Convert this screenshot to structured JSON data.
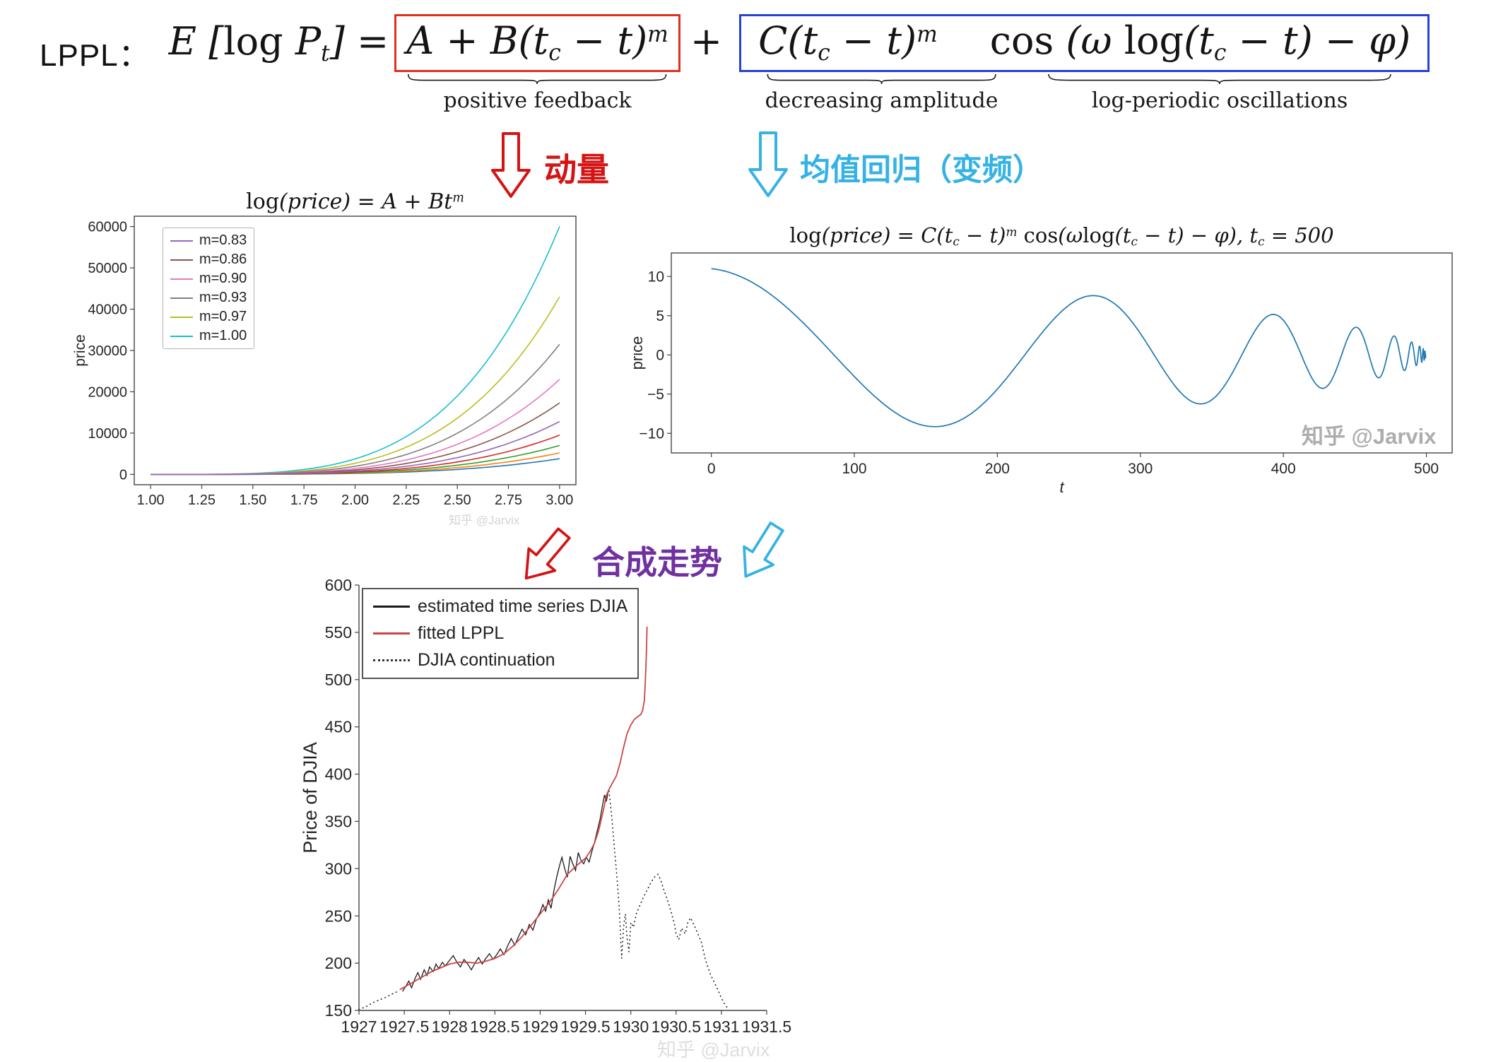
{
  "header": {
    "lppl_label": "LPPL：",
    "formula": {
      "lhs": "E [log P_t] =",
      "term1": "A + B(t_c − t)^m",
      "plus": "+",
      "term2a": "C(t_c − t)^m",
      "term2b": "cos (ω log(t_c − t) − φ)",
      "term1_label": "positive feedback",
      "term2a_label": "decreasing amplitude",
      "term2b_label": "log-periodic oscillations",
      "term1_box_color": "#e0301e",
      "term2_box_color": "#2742d6"
    }
  },
  "annotations": {
    "momentum": {
      "text": "动量",
      "color": "#d41414"
    },
    "mean_reversion": {
      "text": "均值回归（变频）",
      "color": "#35b2e5"
    },
    "synthesis": {
      "text": "合成走势",
      "color": "#7030a0"
    }
  },
  "watermark": {
    "text": "知乎 @Jarvix"
  },
  "chart_data": [
    {
      "type": "line",
      "title": "log(price) = A + Bt^m",
      "xlabel": "",
      "ylabel": "price",
      "xlim": [
        0.92,
        3.08
      ],
      "ylim": [
        -2500,
        62500
      ],
      "x_ticks": [
        1.0,
        1.25,
        1.5,
        1.75,
        2.0,
        2.25,
        2.5,
        2.75,
        3.0
      ],
      "x_tick_labels": [
        "1.00",
        "1.25",
        "1.50",
        "1.75",
        "2.00",
        "2.25",
        "2.50",
        "2.75",
        "3.00"
      ],
      "y_ticks": [
        0,
        10000,
        20000,
        30000,
        40000,
        50000,
        60000
      ],
      "y_tick_labels": [
        "0",
        "10000",
        "20000",
        "30000",
        "40000",
        "50000",
        "60000"
      ],
      "curve_shape": "price(t) = end_value * ((t - 1)/2)^4, t in [1,3]",
      "legend_position": "top-left",
      "series": [
        {
          "label": "m=0.83",
          "color": "#9467bd",
          "end_value": 12800
        },
        {
          "label": "m=0.86",
          "color": "#8c564b",
          "end_value": 17300
        },
        {
          "label": "m=0.90",
          "color": "#e377c2",
          "end_value": 23000
        },
        {
          "label": "m=0.93",
          "color": "#7f7f7f",
          "end_value": 31500
        },
        {
          "label": "m=0.97",
          "color": "#bcbd22",
          "end_value": 43000
        },
        {
          "label": "m=1.00",
          "color": "#17becf",
          "end_value": 60000
        },
        {
          "label": null,
          "color": "#d62728",
          "end_value": 9500
        },
        {
          "label": null,
          "color": "#2ca02c",
          "end_value": 7000
        },
        {
          "label": null,
          "color": "#ff7f0e",
          "end_value": 5200
        },
        {
          "label": null,
          "color": "#1f77b4",
          "end_value": 3800
        }
      ]
    },
    {
      "type": "line",
      "title": "log(price) = C(t_c − t)^m cos(ωlog(t_c − t) − φ), t_c = 500",
      "xlabel": "t",
      "ylabel": "price",
      "xlim": [
        -28,
        518
      ],
      "ylim": [
        -12.5,
        13
      ],
      "x_ticks": [
        0,
        100,
        200,
        300,
        400,
        500
      ],
      "x_tick_labels": [
        "0",
        "100",
        "200",
        "300",
        "400",
        "500"
      ],
      "y_ticks": [
        -10,
        -5,
        0,
        5,
        10
      ],
      "y_tick_labels": [
        "−10",
        "−5",
        "0",
        "5",
        "10"
      ],
      "color": "#1f77b4",
      "formula": "price(t) = C*(t_c − t)^m * cos(omega*ln(t_c − t) − phi)",
      "params": {
        "C": 0.524,
        "m": 0.49,
        "omega": 8.08,
        "phi": 0,
        "t_c": 500
      },
      "x_range": [
        0,
        499.5
      ]
    },
    {
      "type": "line",
      "title": "",
      "xlabel": "",
      "ylabel": "Price of DJIA",
      "xlim": [
        1927,
        1931.5
      ],
      "ylim": [
        150,
        600
      ],
      "x_ticks": [
        1927,
        1927.5,
        1928,
        1928.5,
        1929,
        1929.5,
        1930,
        1930.5,
        1931,
        1931.5
      ],
      "x_tick_labels": [
        "1927",
        "1927.5",
        "1928",
        "1928.5",
        "1929",
        "1929.5",
        "1930",
        "1930.5",
        "1931",
        "1931.5"
      ],
      "y_ticks": [
        150,
        200,
        250,
        300,
        350,
        400,
        450,
        500,
        550,
        600
      ],
      "y_tick_labels": [
        "150",
        "200",
        "250",
        "300",
        "350",
        "400",
        "450",
        "500",
        "550",
        "600"
      ],
      "legend": {
        "position": "top-left",
        "entries": [
          {
            "label": "estimated time series DJIA",
            "color": "#1a1a1a",
            "style": "solid"
          },
          {
            "label": "fitted LPPL",
            "color": "#cc4444",
            "style": "solid"
          },
          {
            "label": "DJIA continuation",
            "color": "#333333",
            "style": "dotted"
          }
        ]
      },
      "series": [
        {
          "name": "estimated time series DJIA",
          "color": "#1a1a1a",
          "style": "solid",
          "points": [
            [
              1927.48,
              170
            ],
            [
              1927.52,
              176
            ],
            [
              1927.55,
              181
            ],
            [
              1927.58,
              174
            ],
            [
              1927.62,
              184
            ],
            [
              1927.65,
              190
            ],
            [
              1927.68,
              183
            ],
            [
              1927.72,
              193
            ],
            [
              1927.75,
              187
            ],
            [
              1927.78,
              196
            ],
            [
              1927.82,
              191
            ],
            [
              1927.85,
              199
            ],
            [
              1927.88,
              194
            ],
            [
              1927.92,
              201
            ],
            [
              1927.95,
              197
            ],
            [
              1928.0,
              203
            ],
            [
              1928.04,
              208
            ],
            [
              1928.08,
              201
            ],
            [
              1928.12,
              196
            ],
            [
              1928.16,
              204
            ],
            [
              1928.2,
              199
            ],
            [
              1928.24,
              193
            ],
            [
              1928.28,
              200
            ],
            [
              1928.32,
              206
            ],
            [
              1928.36,
              199
            ],
            [
              1928.4,
              205
            ],
            [
              1928.44,
              210
            ],
            [
              1928.48,
              204
            ],
            [
              1928.52,
              209
            ],
            [
              1928.56,
              215
            ],
            [
              1928.6,
              209
            ],
            [
              1928.64,
              218
            ],
            [
              1928.68,
              226
            ],
            [
              1928.72,
              219
            ],
            [
              1928.76,
              228
            ],
            [
              1928.8,
              236
            ],
            [
              1928.84,
              230
            ],
            [
              1928.88,
              241
            ],
            [
              1928.92,
              235
            ],
            [
              1928.96,
              247
            ],
            [
              1929.0,
              254
            ],
            [
              1929.03,
              262
            ],
            [
              1929.06,
              255
            ],
            [
              1929.09,
              267
            ],
            [
              1929.12,
              258
            ],
            [
              1929.15,
              276
            ],
            [
              1929.18,
              290
            ],
            [
              1929.21,
              302
            ],
            [
              1929.24,
              312
            ],
            [
              1929.27,
              300
            ],
            [
              1929.3,
              291
            ],
            [
              1929.33,
              313
            ],
            [
              1929.36,
              305
            ],
            [
              1929.39,
              298
            ],
            [
              1929.42,
              317
            ],
            [
              1929.45,
              309
            ],
            [
              1929.48,
              305
            ],
            [
              1929.51,
              312
            ],
            [
              1929.54,
              307
            ],
            [
              1929.57,
              318
            ],
            [
              1929.6,
              328
            ],
            [
              1929.63,
              340
            ],
            [
              1929.66,
              352
            ],
            [
              1929.69,
              368
            ],
            [
              1929.71,
              378
            ],
            [
              1929.73,
              371
            ],
            [
              1929.75,
              381
            ]
          ]
        },
        {
          "name": "fitted LPPL",
          "color": "#cc4444",
          "style": "solid",
          "points": [
            [
              1927.45,
              172
            ],
            [
              1927.6,
              180
            ],
            [
              1927.8,
              191
            ],
            [
              1928.0,
              199
            ],
            [
              1928.1,
              201
            ],
            [
              1928.2,
              201
            ],
            [
              1928.3,
              200
            ],
            [
              1928.4,
              202
            ],
            [
              1928.5,
              205
            ],
            [
              1928.6,
              210
            ],
            [
              1928.7,
              218
            ],
            [
              1928.8,
              228
            ],
            [
              1928.9,
              240
            ],
            [
              1929.0,
              252
            ],
            [
              1929.1,
              264
            ],
            [
              1929.2,
              278
            ],
            [
              1929.3,
              294
            ],
            [
              1929.4,
              303
            ],
            [
              1929.5,
              311
            ],
            [
              1929.55,
              318
            ],
            [
              1929.6,
              327
            ],
            [
              1929.65,
              342
            ],
            [
              1929.7,
              363
            ],
            [
              1929.73,
              377
            ],
            [
              1929.76,
              384
            ],
            [
              1929.8,
              391
            ],
            [
              1929.84,
              398
            ],
            [
              1929.88,
              411
            ],
            [
              1929.92,
              428
            ],
            [
              1929.96,
              443
            ],
            [
              1930.0,
              452
            ],
            [
              1930.04,
              458
            ],
            [
              1930.08,
              461
            ],
            [
              1930.11,
              463
            ],
            [
              1930.13,
              467
            ],
            [
              1930.15,
              478
            ],
            [
              1930.16,
              497
            ],
            [
              1930.17,
              522
            ],
            [
              1930.18,
              556
            ]
          ]
        },
        {
          "name": "DJIA continuation",
          "color": "#333333",
          "style": "dotted",
          "segments": [
            [
              [
                1927.0,
                151
              ],
              [
                1927.08,
                154
              ],
              [
                1927.15,
                158
              ],
              [
                1927.22,
                161
              ],
              [
                1927.3,
                164
              ],
              [
                1927.38,
                168
              ],
              [
                1927.45,
                171
              ]
            ],
            [
              [
                1929.76,
                382
              ],
              [
                1929.79,
                355
              ],
              [
                1929.81,
                332
              ],
              [
                1929.83,
                310
              ],
              [
                1929.85,
                288
              ],
              [
                1929.87,
                262
              ],
              [
                1929.88,
                243
              ],
              [
                1929.9,
                205
              ],
              [
                1929.92,
                238
              ],
              [
                1929.94,
                252
              ],
              [
                1929.96,
                226
              ],
              [
                1929.98,
                212
              ],
              [
                1930.0,
                243
              ],
              [
                1930.03,
                238
              ],
              [
                1930.06,
                252
              ],
              [
                1930.1,
                261
              ],
              [
                1930.14,
                270
              ],
              [
                1930.18,
                277
              ],
              [
                1930.22,
                285
              ],
              [
                1930.26,
                291
              ],
              [
                1930.3,
                294
              ],
              [
                1930.33,
                288
              ],
              [
                1930.36,
                279
              ],
              [
                1930.4,
                268
              ],
              [
                1930.44,
                256
              ],
              [
                1930.48,
                242
              ],
              [
                1930.5,
                231
              ],
              [
                1930.53,
                225
              ],
              [
                1930.56,
                237
              ],
              [
                1930.6,
                231
              ],
              [
                1930.63,
                243
              ],
              [
                1930.66,
                248
              ],
              [
                1930.7,
                240
              ],
              [
                1930.74,
                231
              ],
              [
                1930.78,
                222
              ],
              [
                1930.82,
                205
              ],
              [
                1930.85,
                196
              ],
              [
                1930.88,
                188
              ],
              [
                1930.92,
                180
              ],
              [
                1930.96,
                172
              ],
              [
                1931.0,
                163
              ],
              [
                1931.04,
                156
              ],
              [
                1931.08,
                151
              ]
            ]
          ]
        }
      ]
    }
  ]
}
